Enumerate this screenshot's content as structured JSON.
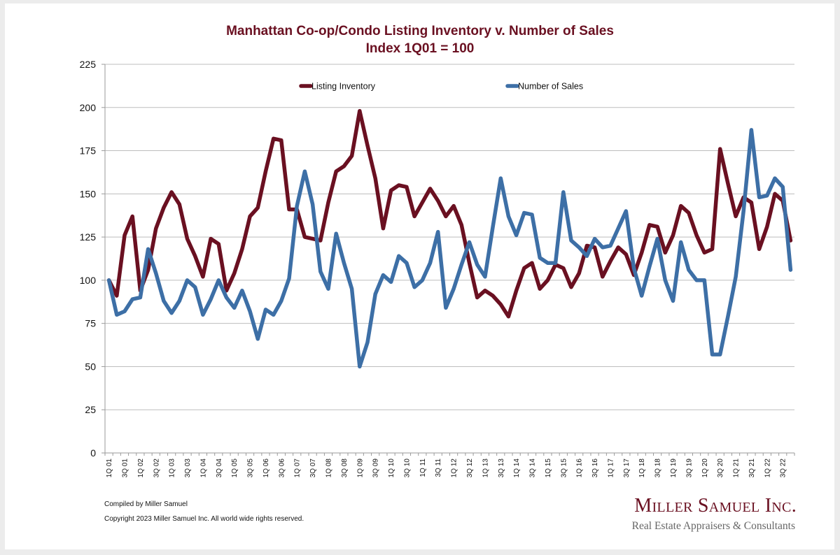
{
  "chart_data": {
    "type": "line",
    "title": "Manhattan Co-op/Condo Listing Inventory v. Number of Sales",
    "subtitle": "Index 1Q01 = 100",
    "xlabel": "",
    "ylabel": "",
    "ylim": [
      0,
      225
    ],
    "yticks": [
      0,
      25,
      50,
      75,
      100,
      125,
      150,
      175,
      200,
      225
    ],
    "grid": true,
    "legend_position": "top",
    "x": [
      "1Q 01",
      "2Q 01",
      "3Q 01",
      "4Q 01",
      "1Q 02",
      "2Q 02",
      "3Q 02",
      "4Q 02",
      "1Q 03",
      "2Q 03",
      "3Q 03",
      "4Q 03",
      "1Q 04",
      "2Q 04",
      "3Q 04",
      "4Q 04",
      "1Q 05",
      "2Q 05",
      "3Q 05",
      "4Q 05",
      "1Q 06",
      "2Q 06",
      "3Q 06",
      "4Q 06",
      "1Q 07",
      "2Q 07",
      "3Q 07",
      "4Q 07",
      "1Q 08",
      "2Q 08",
      "3Q 08",
      "4Q 08",
      "1Q 09",
      "2Q 09",
      "3Q 09",
      "4Q 09",
      "1Q 10",
      "2Q 10",
      "3Q 10",
      "4Q 10",
      "1Q 11",
      "2Q 11",
      "3Q 11",
      "4Q 11",
      "1Q 12",
      "2Q 12",
      "3Q 12",
      "4Q 12",
      "1Q 13",
      "2Q 13",
      "3Q 13",
      "4Q 13",
      "1Q 14",
      "2Q 14",
      "3Q 14",
      "4Q 14",
      "1Q 15",
      "2Q 15",
      "3Q 15",
      "4Q 15",
      "1Q 16",
      "2Q 16",
      "3Q 16",
      "4Q 16",
      "1Q 17",
      "2Q 17",
      "3Q 17",
      "4Q 17",
      "1Q 18",
      "2Q 18",
      "3Q 18",
      "4Q 18",
      "1Q 19",
      "2Q 19",
      "3Q 19",
      "4Q 19",
      "1Q 20",
      "2Q 20",
      "3Q 20",
      "4Q 20",
      "1Q 21",
      "2Q 21",
      "3Q 21",
      "4Q 21",
      "1Q 22",
      "2Q 22",
      "3Q 22",
      "4Q 22"
    ],
    "x_tick_labels_every": 2,
    "series": [
      {
        "name": "Listing Inventory",
        "color": "#6a1021",
        "values": [
          100,
          91,
          126,
          137,
          94,
          106,
          130,
          142,
          151,
          144,
          124,
          114,
          102,
          124,
          121,
          94,
          104,
          118,
          137,
          142,
          163,
          182,
          181,
          141,
          141,
          125,
          124,
          123,
          145,
          163,
          166,
          172,
          198,
          178,
          159,
          130,
          152,
          155,
          154,
          137,
          145,
          153,
          146,
          137,
          143,
          132,
          110,
          90,
          94,
          91,
          86,
          79,
          94,
          107,
          110,
          95,
          100,
          109,
          107,
          96,
          104,
          120,
          119,
          102,
          111,
          119,
          115,
          103,
          116,
          132,
          131,
          116,
          126,
          143,
          139,
          126,
          116,
          118,
          176,
          156,
          137,
          148,
          145,
          118,
          131,
          150,
          146,
          123
        ]
      },
      {
        "name": "Number of Sales",
        "color": "#3d6fa6",
        "values": [
          100,
          80,
          82,
          89,
          90,
          118,
          104,
          88,
          81,
          88,
          100,
          96,
          80,
          89,
          100,
          90,
          84,
          94,
          82,
          66,
          83,
          80,
          88,
          101,
          143,
          163,
          144,
          105,
          95,
          127,
          110,
          95,
          50,
          64,
          92,
          103,
          99,
          114,
          110,
          96,
          100,
          110,
          128,
          84,
          95,
          109,
          122,
          109,
          102,
          131,
          159,
          137,
          126,
          139,
          138,
          113,
          110,
          110,
          151,
          123,
          119,
          114,
          124,
          119,
          120,
          130,
          140,
          107,
          91,
          108,
          124,
          100,
          88,
          122,
          106,
          100,
          100,
          57,
          57,
          79,
          102,
          140,
          187,
          148,
          149,
          159,
          154,
          106
        ]
      }
    ]
  },
  "footer": {
    "compiled": "Compiled by Miller Samuel",
    "copyright": "Copyright 2023 Miller Samuel Inc.  All world wide rights reserved."
  },
  "logo": {
    "name": "Miller Samuel Inc.",
    "tagline": "Real Estate Appraisers & Consultants"
  }
}
